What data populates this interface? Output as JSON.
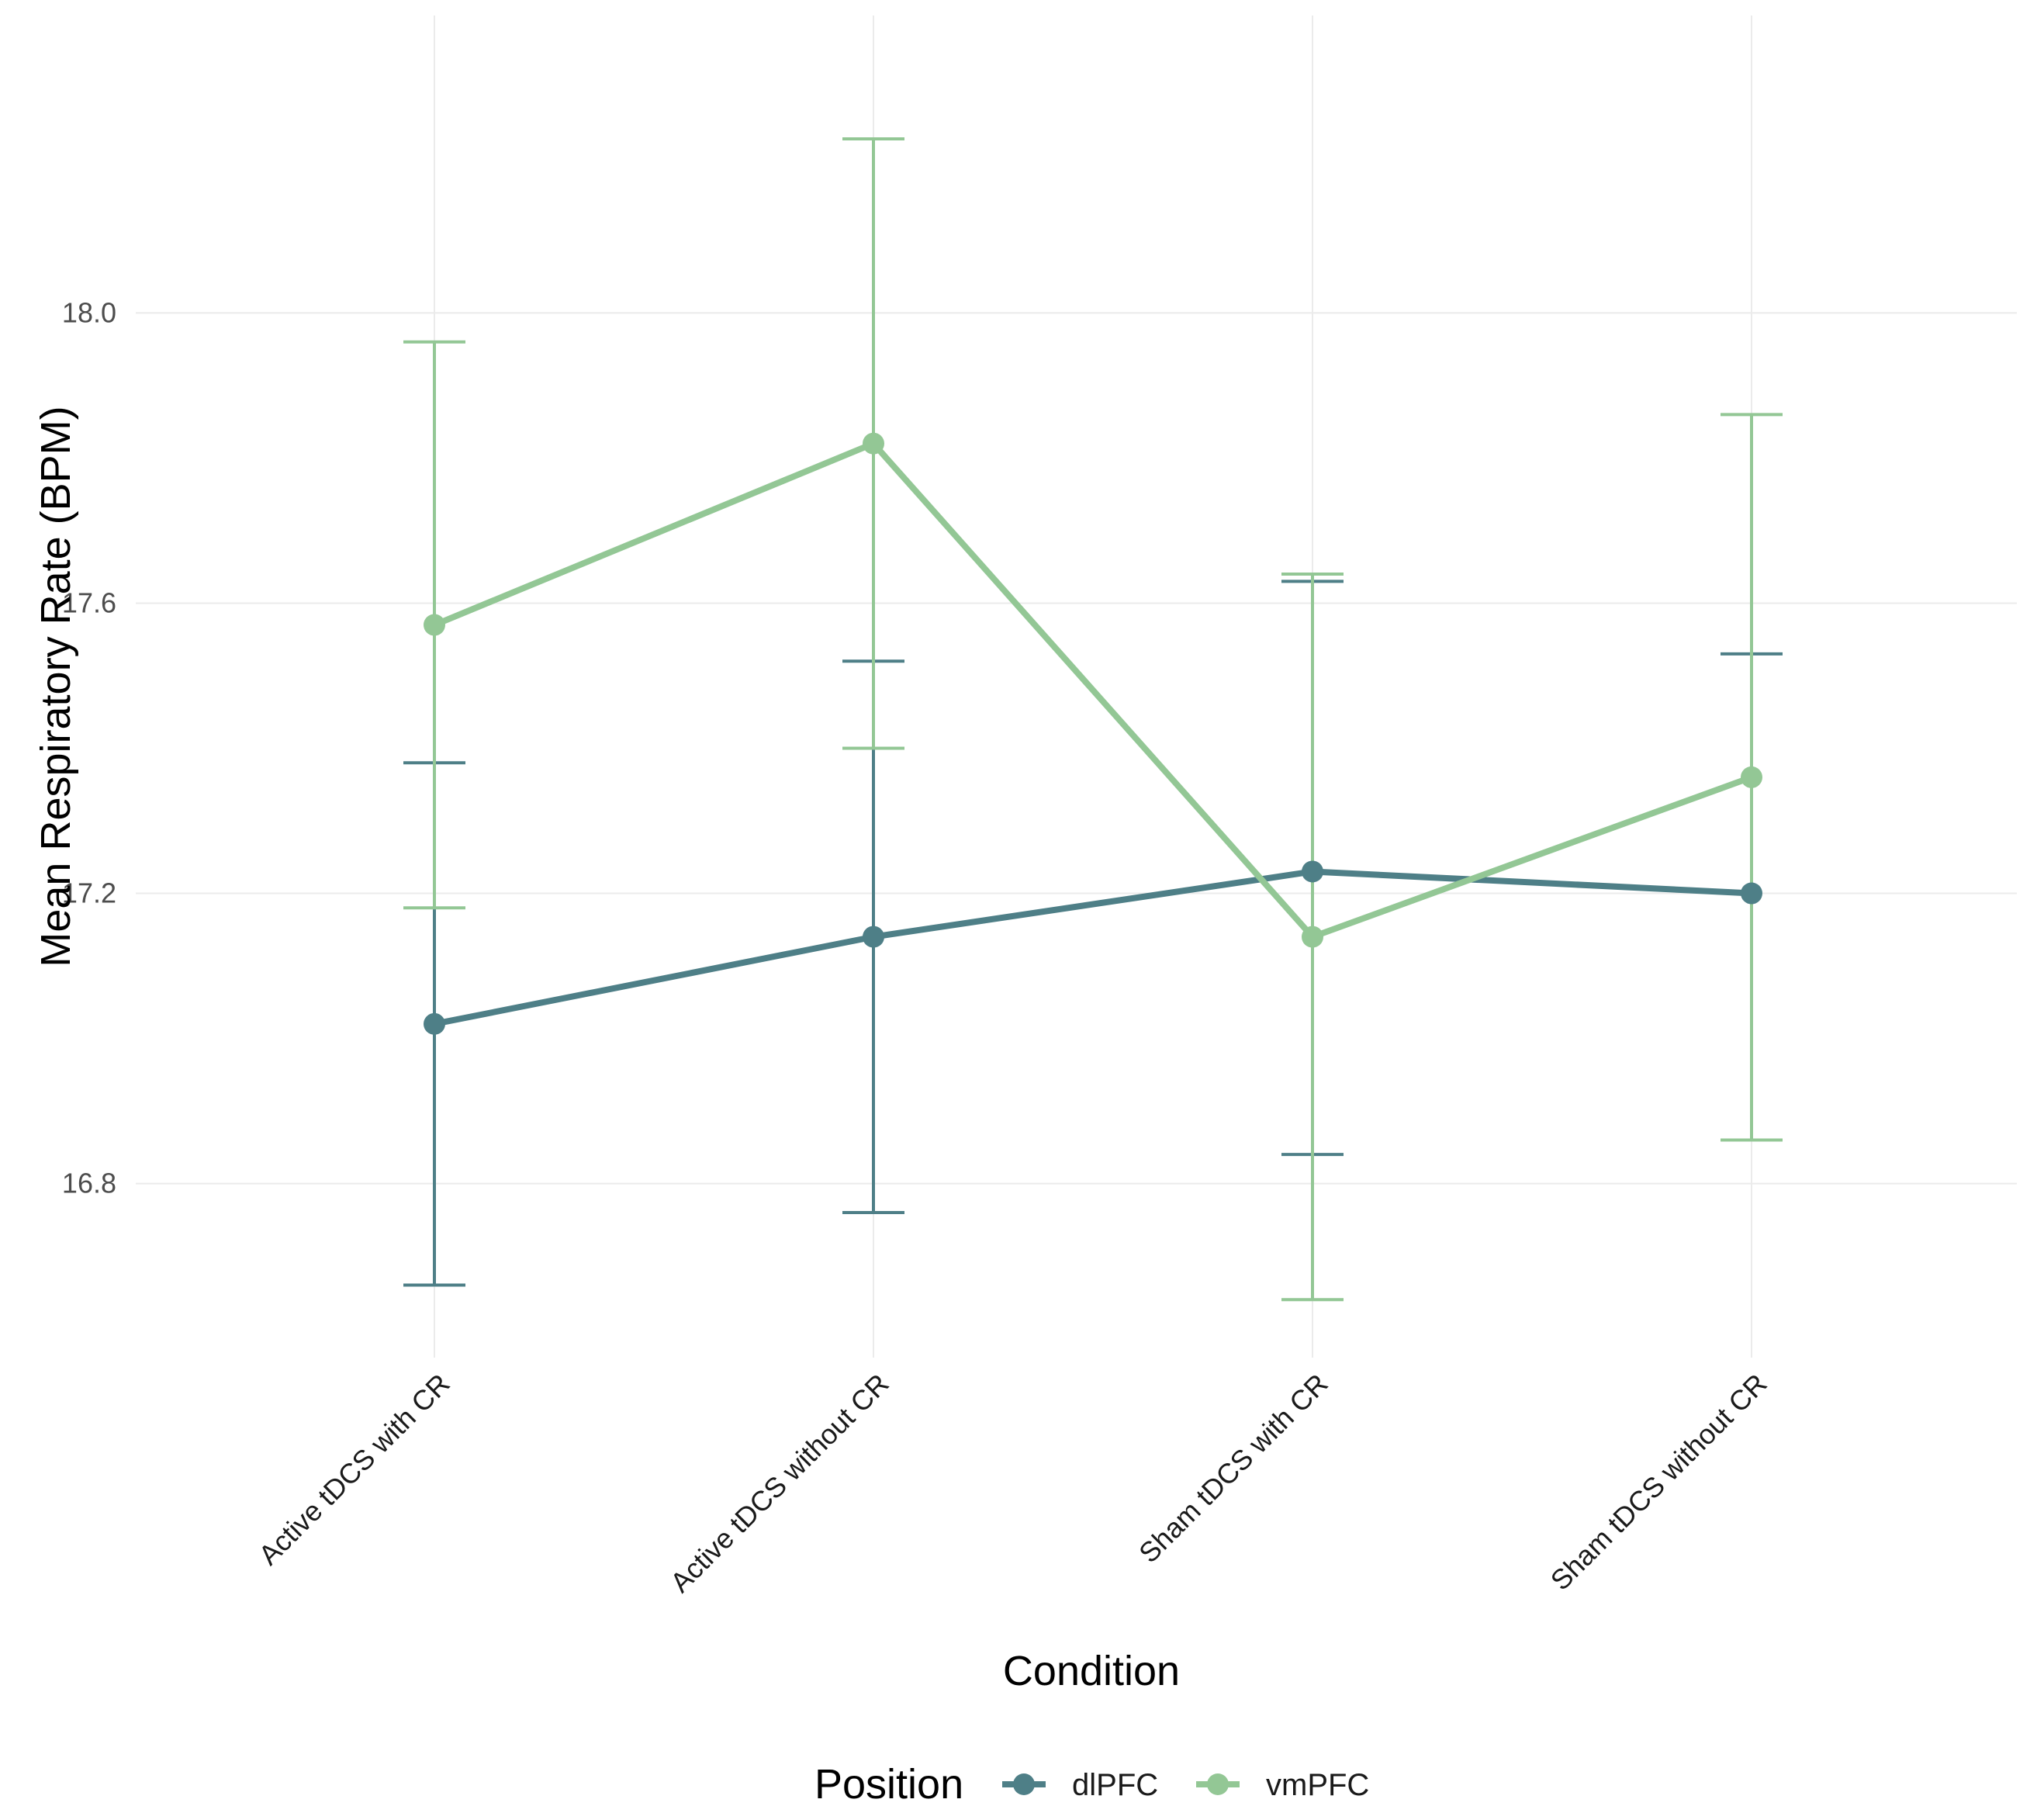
{
  "chart_data": {
    "type": "line",
    "title": "",
    "xlabel": "Condition",
    "ylabel": "Mean Respiratory Rate (BPM)",
    "categories": [
      "Active tDCS with CR",
      "Active tDCS without CR",
      "Sham tDCS with CR",
      "Sham tDCS without CR"
    ],
    "ylim": [
      16.56,
      18.41
    ],
    "yticks": [
      16.8,
      17.2,
      17.6,
      18.0
    ],
    "ytick_labels": [
      "16.8",
      "17.2",
      "17.6",
      "18.0"
    ],
    "grid": true,
    "legend": {
      "title": "Position",
      "placement": "bottom"
    },
    "series": [
      {
        "name": "dlPFC",
        "color": "#4e7f87",
        "values": [
          17.02,
          17.14,
          17.23,
          17.2
        ],
        "lower": [
          16.66,
          16.76,
          16.84,
          16.86
        ],
        "upper": [
          17.38,
          17.52,
          17.63,
          17.53
        ]
      },
      {
        "name": "vmPFC",
        "color": "#93c795",
        "values": [
          17.57,
          17.82,
          17.14,
          17.36
        ],
        "lower": [
          17.18,
          17.4,
          16.64,
          16.86
        ],
        "upper": [
          17.96,
          18.24,
          17.64,
          17.86
        ]
      }
    ]
  }
}
